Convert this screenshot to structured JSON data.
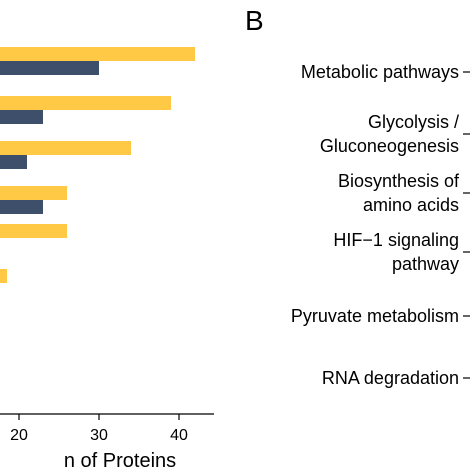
{
  "chart_data": {
    "type": "bar",
    "orientation": "horizontal",
    "panel_right_label": "B",
    "xlabel_visible": "n of Proteins",
    "x_ticks": [
      20,
      30,
      40
    ],
    "xlim": [
      13,
      44
    ],
    "grid": false,
    "colors": {
      "series_a": "#FFC845",
      "series_b": "#3D4F6B"
    },
    "series": [
      {
        "values": [
          42,
          39,
          34,
          26,
          26,
          18.5
        ]
      },
      {
        "values": [
          30,
          23,
          21,
          23,
          null,
          null
        ]
      }
    ],
    "right_panel_categories": [
      [
        "Metabolic pathways"
      ],
      [
        "Glycolysis /",
        "Gluconeogenesis"
      ],
      [
        "Biosynthesis of",
        "amino acids"
      ],
      [
        "HIF−1 signaling",
        "pathway"
      ],
      [
        "Pyruvate metabolism"
      ],
      [
        "RNA degradation"
      ]
    ]
  }
}
